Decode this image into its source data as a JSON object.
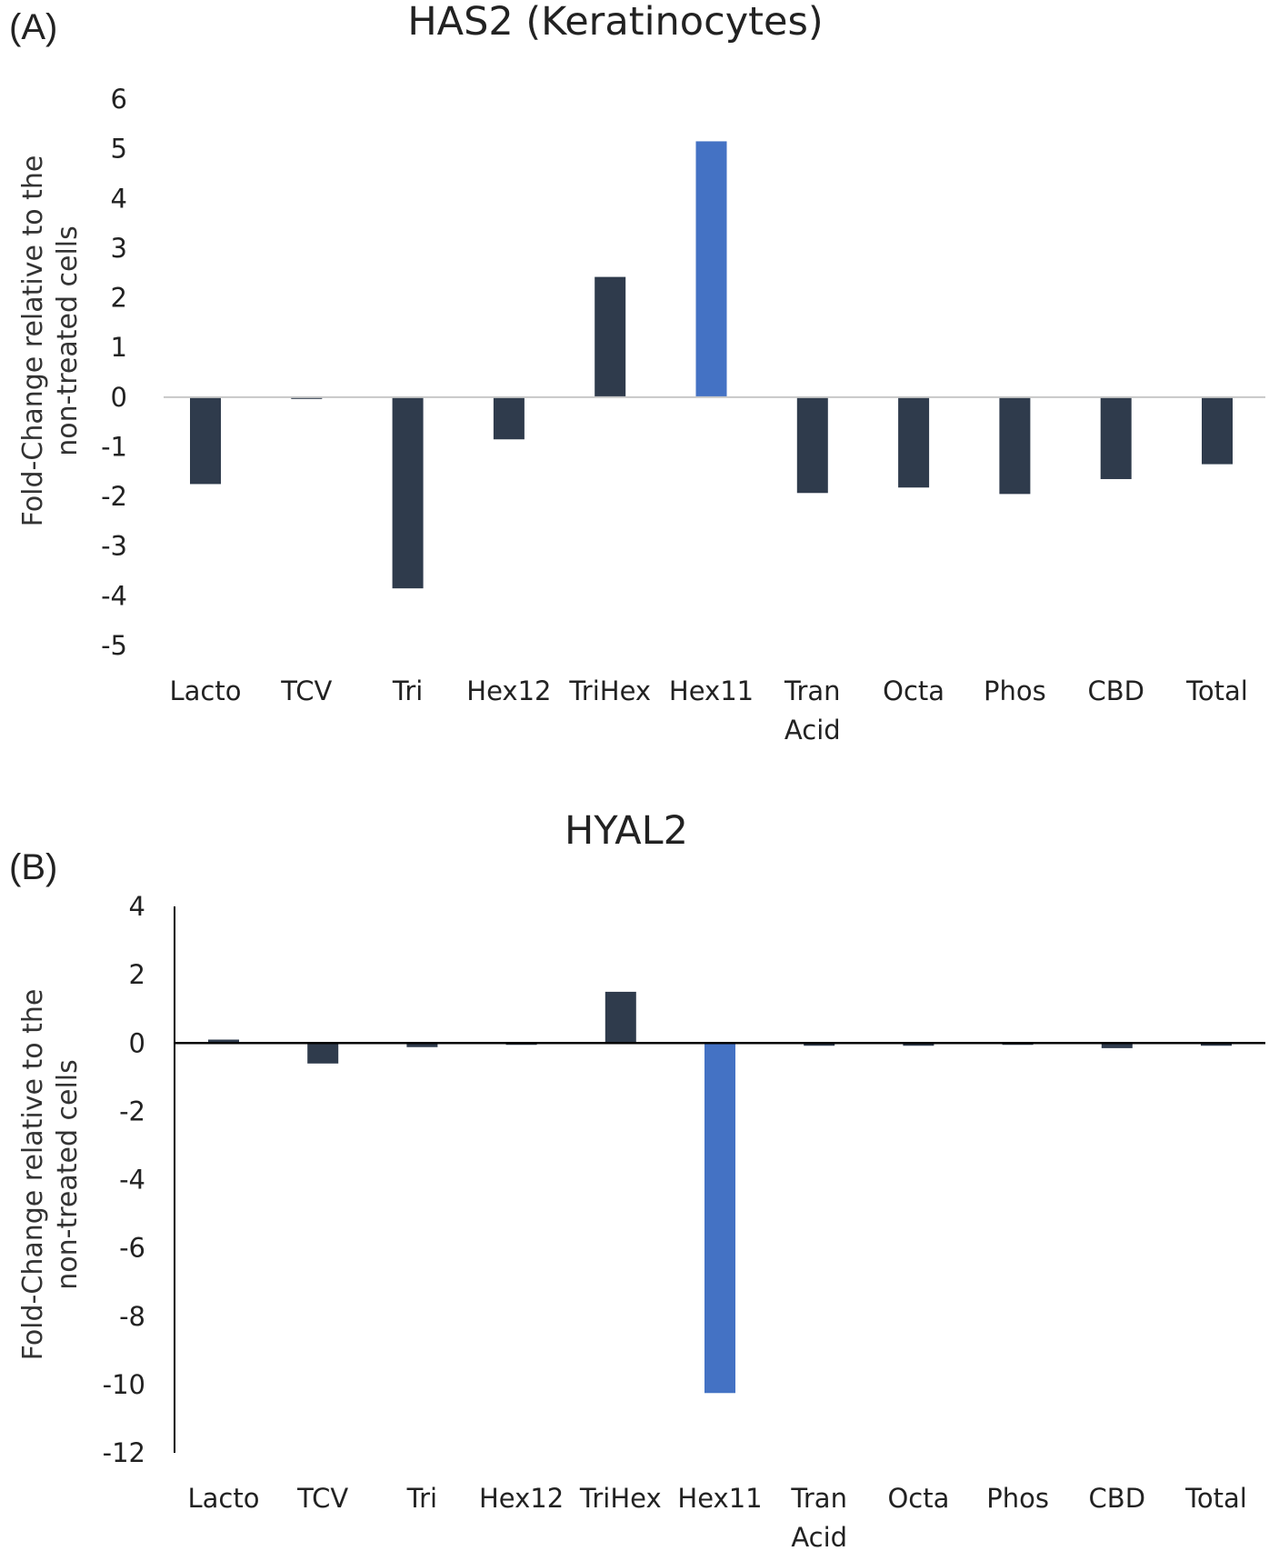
{
  "colors": {
    "bar": "#2f3b4c",
    "highlight": "#4472c4",
    "zero_line_a": "#c8c8c8",
    "axis_b": "#000000",
    "text": "#222222"
  },
  "chart_data": [
    {
      "type": "bar",
      "panel_label": "(A)",
      "title": "HAS2 (Keratinocytes)",
      "ylabel_lines": [
        "Fold-Change relative to the",
        "non-treated cells"
      ],
      "ylim": [
        -5,
        6
      ],
      "yticks": [
        6,
        5,
        4,
        3,
        2,
        1,
        0,
        -1,
        -2,
        -3,
        -4,
        -5
      ],
      "ytick_labels": [
        "6",
        "5",
        "4",
        "3",
        "2",
        "1",
        "0",
        "-1",
        "-2",
        "-3",
        "-4",
        "-5"
      ],
      "grid": false,
      "legend": "none",
      "categories": [
        "Lacto",
        "TCV",
        "Tri",
        "Hex12",
        "TriHex",
        "Hex11",
        "Tran Acid",
        "Octa",
        "Phos",
        "CBD",
        "Total"
      ],
      "category_lines": [
        [
          "Lacto"
        ],
        [
          "TCV"
        ],
        [
          "Tri"
        ],
        [
          "Hex12"
        ],
        [
          "TriHex"
        ],
        [
          "Hex11"
        ],
        [
          "Tran",
          "Acid"
        ],
        [
          "Octa"
        ],
        [
          "Phos"
        ],
        [
          "CBD"
        ],
        [
          "Total"
        ]
      ],
      "values": [
        -1.75,
        0,
        -3.85,
        -0.85,
        2.42,
        5.15,
        -1.93,
        -1.82,
        -1.95,
        -1.65,
        -1.35
      ],
      "highlight": [
        "Hex11"
      ]
    },
    {
      "type": "bar",
      "panel_label": "(B)",
      "title": "HYAL2",
      "ylabel_lines": [
        "Fold-Change relative to the",
        "non-treated cells"
      ],
      "ylim": [
        -12,
        4
      ],
      "yticks": [
        4,
        2,
        0,
        -2,
        -4,
        -6,
        -8,
        -10,
        -12
      ],
      "ytick_labels": [
        "4",
        "2",
        "0",
        "-2",
        "-4",
        "-6",
        "-8",
        "-10",
        "-12"
      ],
      "grid": false,
      "legend": "none",
      "categories": [
        "Lacto",
        "TCV",
        "Tri",
        "Hex12",
        "TriHex",
        "Hex11",
        "Tran Acid",
        "Octa",
        "Phos",
        "CBD",
        "Total"
      ],
      "category_lines": [
        [
          "Lacto"
        ],
        [
          "TCV"
        ],
        [
          "Tri"
        ],
        [
          "Hex12"
        ],
        [
          "TriHex"
        ],
        [
          "Hex11"
        ],
        [
          "Tran",
          "Acid"
        ],
        [
          "Octa"
        ],
        [
          "Phos"
        ],
        [
          "CBD"
        ],
        [
          "Total"
        ]
      ],
      "values": [
        0.1,
        -0.6,
        -0.12,
        0,
        1.5,
        -10.25,
        -0.08,
        -0.08,
        -0.03,
        -0.15,
        -0.08
      ],
      "highlight": [
        "Hex11"
      ]
    }
  ]
}
